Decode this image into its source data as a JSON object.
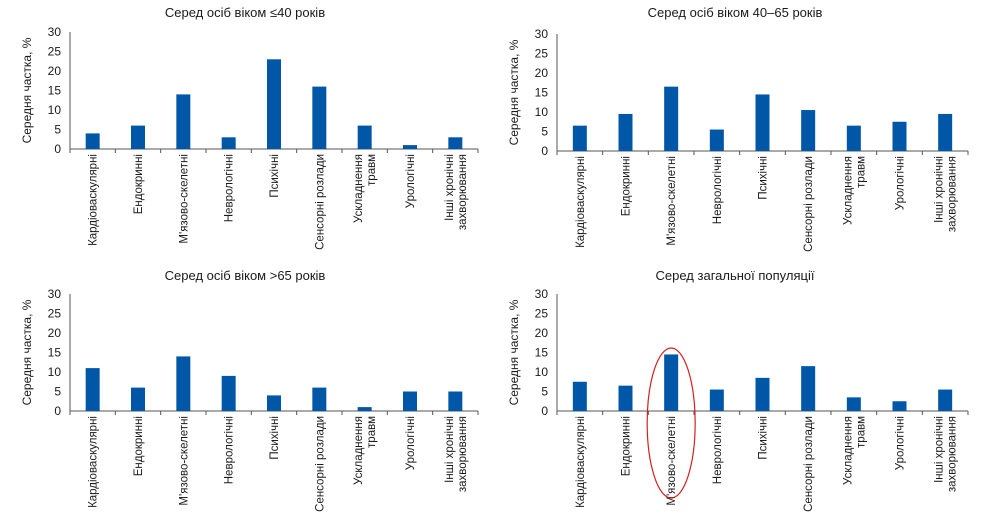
{
  "chart_data": [
    {
      "type": "bar",
      "title": "Серед осіб віком ≤40 років",
      "ylabel": "Середня частка, %",
      "xlabel": "",
      "ylim": [
        0,
        30
      ],
      "yticks": [
        "30",
        "25",
        "20",
        "15",
        "10",
        "5",
        "0"
      ],
      "categories": [
        [
          "Кардіоваскулярні"
        ],
        [
          "Ендокринні"
        ],
        [
          "М'язово-скелетні"
        ],
        [
          "Неврологічні"
        ],
        [
          "Психічні"
        ],
        [
          "Сенсорні розлади"
        ],
        [
          "Ускладнення",
          "травм"
        ],
        [
          "Урологічні"
        ],
        [
          "Інші хронічні",
          "захворювання"
        ]
      ],
      "values": [
        4,
        6,
        14,
        3,
        23,
        16,
        6,
        1,
        3
      ],
      "color": "#0057a8",
      "grid": false
    },
    {
      "type": "bar",
      "title": "Серед осіб віком 40–65 років",
      "ylabel": "Середня частка, %",
      "xlabel": "",
      "ylim": [
        0,
        30
      ],
      "yticks": [
        "30",
        "25",
        "20",
        "15",
        "10",
        "5",
        "0"
      ],
      "categories": [
        [
          "Кардіоваскулярні"
        ],
        [
          "Ендокринні"
        ],
        [
          "М'язово-скелетні"
        ],
        [
          "Неврологічні"
        ],
        [
          "Психічні"
        ],
        [
          "Сенсорні розлади"
        ],
        [
          "Ускладнення",
          "травм"
        ],
        [
          "Урологічні"
        ],
        [
          "Інші хронічні",
          "захворювання"
        ]
      ],
      "values": [
        6.5,
        9.5,
        16.5,
        5.5,
        14.5,
        10.5,
        6.5,
        7.5,
        9.5
      ],
      "color": "#0057a8",
      "grid": false
    },
    {
      "type": "bar",
      "title": "Серед осіб віком >65 років",
      "ylabel": "Середня частка, %",
      "xlabel": "",
      "ylim": [
        0,
        30
      ],
      "yticks": [
        "30",
        "25",
        "20",
        "15",
        "10",
        "5",
        "0"
      ],
      "categories": [
        [
          "Кардіоваскулярні"
        ],
        [
          "Ендокринні"
        ],
        [
          "М'язово-скелетні"
        ],
        [
          "Неврологічні"
        ],
        [
          "Психічні"
        ],
        [
          "Сенсорні розлади"
        ],
        [
          "Ускладнення",
          "травм"
        ],
        [
          "Урологічні"
        ],
        [
          "Інші хронічні",
          "захворювання"
        ]
      ],
      "values": [
        11,
        6,
        14,
        9,
        4,
        6,
        1,
        5,
        5
      ],
      "color": "#0057a8",
      "grid": false
    },
    {
      "type": "bar",
      "title": "Серед загальної популяції",
      "ylabel": "Середня частка, %",
      "xlabel": "",
      "ylim": [
        0,
        30
      ],
      "yticks": [
        "30",
        "25",
        "20",
        "15",
        "10",
        "5",
        "0"
      ],
      "categories": [
        [
          "Кардіоваскулярні"
        ],
        [
          "Ендокринні"
        ],
        [
          "М'язово-скелетні"
        ],
        [
          "Неврологічні"
        ],
        [
          "Психічні"
        ],
        [
          "Сенсорні розлади"
        ],
        [
          "Ускладнення",
          "травм"
        ],
        [
          "Урологічні"
        ],
        [
          "Інші хронічні",
          "захворювання"
        ]
      ],
      "values": [
        7.5,
        6.5,
        14.5,
        5.5,
        8.5,
        11.5,
        3.5,
        2.5,
        5.5
      ],
      "color": "#0057a8",
      "grid": false,
      "highlight_category": "М'язово-скелетні",
      "highlight_color": "#d42020"
    }
  ]
}
